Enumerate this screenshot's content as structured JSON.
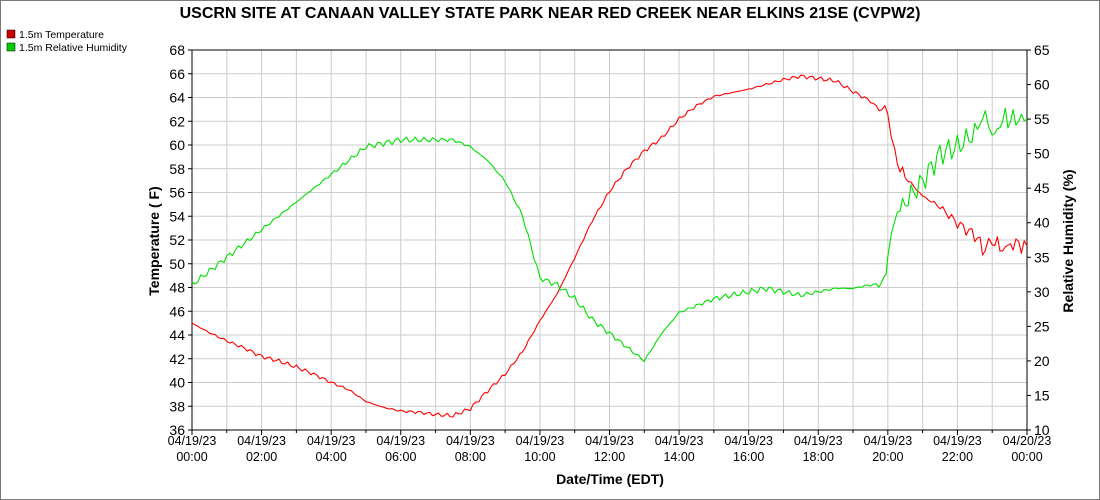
{
  "chart_data": {
    "type": "line",
    "title": "USCRN SITE AT CANAAN VALLEY STATE PARK NEAR RED CREEK NEAR ELKINS 21SE (CVPW2)",
    "xlabel": "Date/Time (EDT)",
    "ylabel_left": "Temperature ( F)",
    "ylabel_right": "Relative Humidity (%)",
    "ylim_left": [
      36,
      68
    ],
    "ylim_right": [
      10,
      65
    ],
    "xlim_hours": [
      0,
      24
    ],
    "yticks_left": [
      "36",
      "38",
      "40",
      "42",
      "44",
      "46",
      "48",
      "50",
      "52",
      "54",
      "56",
      "58",
      "60",
      "62",
      "64",
      "66",
      "68"
    ],
    "yticks_right": [
      "10",
      "15",
      "20",
      "25",
      "30",
      "35",
      "40",
      "45",
      "50",
      "55",
      "60",
      "65"
    ],
    "xticks": [
      {
        "h": 0,
        "date": "04/19/23",
        "time": "00:00"
      },
      {
        "h": 2,
        "date": "04/19/23",
        "time": "02:00"
      },
      {
        "h": 4,
        "date": "04/19/23",
        "time": "04:00"
      },
      {
        "h": 6,
        "date": "04/19/23",
        "time": "06:00"
      },
      {
        "h": 8,
        "date": "04/19/23",
        "time": "08:00"
      },
      {
        "h": 10,
        "date": "04/19/23",
        "time": "10:00"
      },
      {
        "h": 12,
        "date": "04/19/23",
        "time": "12:00"
      },
      {
        "h": 14,
        "date": "04/19/23",
        "time": "14:00"
      },
      {
        "h": 16,
        "date": "04/19/23",
        "time": "16:00"
      },
      {
        "h": 18,
        "date": "04/19/23",
        "time": "18:00"
      },
      {
        "h": 20,
        "date": "04/19/23",
        "time": "20:00"
      },
      {
        "h": 22,
        "date": "04/19/23",
        "time": "22:00"
      },
      {
        "h": 24,
        "date": "04/20/23",
        "time": "00:00"
      }
    ],
    "grid": true,
    "legend_position": "top-left",
    "series": [
      {
        "name": "1.5m Temperature",
        "axis": "left",
        "color": "#ff0000",
        "x": [
          0,
          0.5,
          1,
          1.5,
          2,
          2.5,
          3,
          3.5,
          4,
          4.5,
          5,
          5.5,
          6,
          6.5,
          7,
          7.5,
          8,
          8.5,
          9,
          9.5,
          10,
          10.5,
          11,
          11.5,
          12,
          12.5,
          13,
          13.5,
          14,
          14.5,
          15,
          15.5,
          16,
          16.5,
          17,
          17.5,
          18,
          18.5,
          19,
          19.5,
          19.75,
          20,
          20.2,
          20.5,
          21,
          21.5,
          22,
          22.5,
          22.8,
          23,
          23.3,
          23.6,
          24
        ],
        "y": [
          45.0,
          44.2,
          43.5,
          42.9,
          42.2,
          41.8,
          41.3,
          40.7,
          40.0,
          39.4,
          38.4,
          37.9,
          37.6,
          37.5,
          37.3,
          37.2,
          37.8,
          39.3,
          40.7,
          42.6,
          45.2,
          47.5,
          50.5,
          53.6,
          56.1,
          58.0,
          59.5,
          60.6,
          62.2,
          63.3,
          64.1,
          64.4,
          64.7,
          65.1,
          65.5,
          65.8,
          65.6,
          65.4,
          64.5,
          63.7,
          63.0,
          62.9,
          59.0,
          57.3,
          55.7,
          54.8,
          53.4,
          52.4,
          51.0,
          52.0,
          51.2,
          51.7,
          51.5
        ]
      },
      {
        "name": "1.5m Relative Humidity",
        "axis": "right",
        "color": "#00e000",
        "x": [
          0,
          0.5,
          1,
          1.5,
          2,
          2.5,
          3,
          3.5,
          4,
          4.5,
          5,
          5.5,
          6,
          6.5,
          7,
          7.5,
          8,
          8.5,
          9,
          9.5,
          10,
          10.5,
          11,
          11.5,
          12,
          12.5,
          13,
          13.5,
          14,
          14.5,
          15,
          15.5,
          16,
          16.5,
          17,
          17.5,
          18,
          18.5,
          19,
          19.5,
          19.9,
          20,
          20.2,
          20.5,
          21,
          21.5,
          22,
          22.5,
          22.8,
          23,
          23.3,
          23.6,
          24
        ],
        "y": [
          31,
          33,
          35,
          37,
          39,
          41,
          43,
          45,
          47,
          49,
          51,
          51.5,
          52,
          52,
          52,
          52,
          51,
          49,
          46,
          41,
          32,
          31,
          29,
          26,
          24,
          22,
          20,
          24,
          27,
          28,
          29,
          29.5,
          30,
          30.5,
          30,
          29.5,
          30,
          30.5,
          30.5,
          31,
          31,
          36,
          41,
          43,
          46,
          50,
          51,
          53,
          56,
          52,
          55,
          55,
          55
        ]
      }
    ]
  }
}
